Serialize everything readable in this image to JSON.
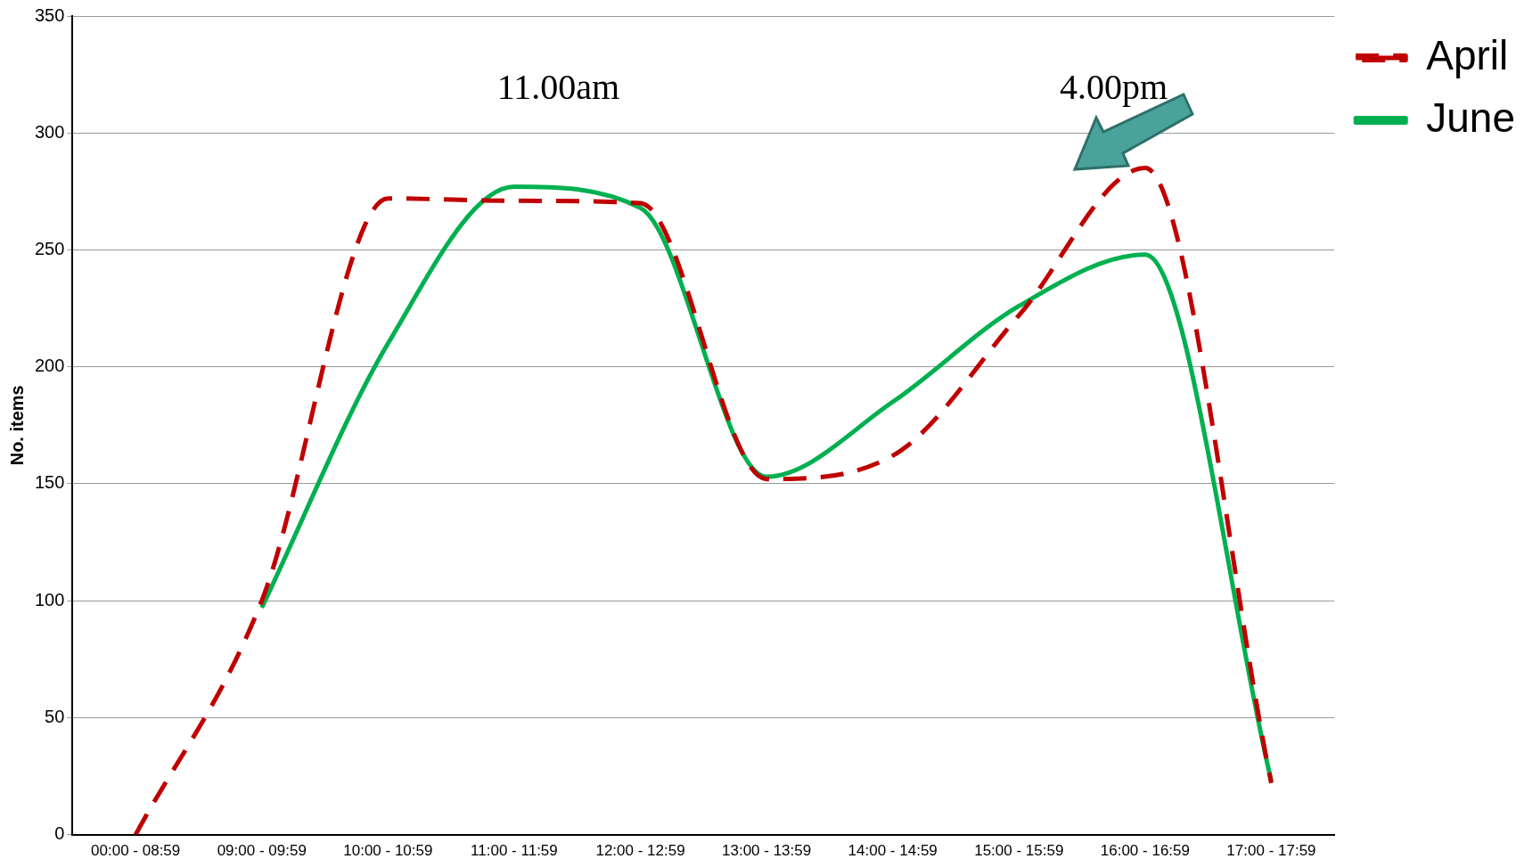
{
  "chart_data": {
    "type": "line",
    "ylabel": "No. items",
    "categories": [
      "00:00 - 08:59",
      "09:00 - 09:59",
      "10:00 - 10:59",
      "11:00 - 11:59",
      "12:00 - 12:59",
      "13:00 - 13:59",
      "14:00 - 14:59",
      "15:00 - 15:59",
      "16:00 - 16:59",
      "17:00 - 17:59"
    ],
    "series": [
      {
        "name": "April",
        "color": "#c00000",
        "line_style": "dashed",
        "values": [
          0,
          100,
          272,
          271,
          270,
          152,
          162,
          222,
          285,
          22
        ]
      },
      {
        "name": "June",
        "color": "#00b050",
        "line_style": "solid",
        "values": [
          null,
          97,
          210,
          277,
          268,
          153,
          185,
          226,
          248,
          23
        ]
      }
    ],
    "ylim": [
      0,
      350
    ],
    "yticks": [
      0,
      50,
      100,
      150,
      200,
      250,
      300,
      350
    ],
    "grid": "y",
    "legend": "top right",
    "marker": "none",
    "annotations": [
      "11.00am",
      "4.00pm"
    ]
  }
}
